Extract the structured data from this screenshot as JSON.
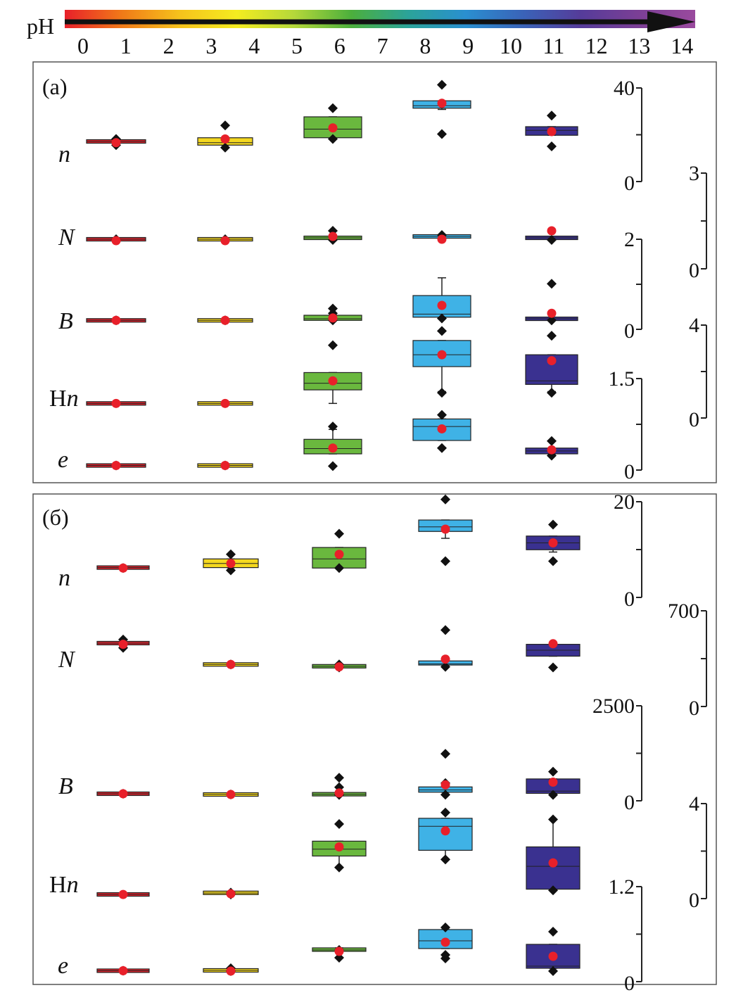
{
  "ph_scale": {
    "label": "pH",
    "ticks": [
      "0",
      "1",
      "2",
      "3",
      "4",
      "5",
      "6",
      "7",
      "8",
      "9",
      "10",
      "11",
      "12",
      "13",
      "14"
    ],
    "gradient_colors": [
      "#e8202a",
      "#f07a18",
      "#f6c21c",
      "#f4ec20",
      "#b5d83a",
      "#4caf3c",
      "#2ba39a",
      "#2a8fd0",
      "#3a63b8",
      "#553c9a",
      "#7b3f95",
      "#9a4a9e"
    ]
  },
  "colors": {
    "ph1": "#e0242e",
    "ph3": "#f4d820",
    "ph6": "#6ab83e",
    "ph8": "#3fb2e6",
    "ph11": "#3a3190",
    "mean": "#e8202a",
    "outlier": "#111111"
  },
  "chart_data": [
    {
      "type": "box",
      "panel_label": "(a)",
      "groups": [
        "pH 1",
        "pH 3",
        "pH 6",
        "pH 8",
        "pH 11"
      ],
      "rows": [
        {
          "name": "n",
          "label_parts": [
            {
              "t": "n",
              "i": true
            }
          ],
          "axis_index": 0,
          "boxes": [
            {
              "q1": 13.5,
              "median": 14,
              "q3": 14.5,
              "wlo": 13.5,
              "whi": 14.5,
              "mean": 13.5,
              "outliers": [
                12.5,
                15
              ]
            },
            {
              "q1": 12.5,
              "median": 13.5,
              "q3": 15.5,
              "wlo": 12.5,
              "whi": 15.5,
              "mean": 15,
              "outliers": [
                11.5,
                20.5
              ]
            },
            {
              "q1": 15.5,
              "median": 19,
              "q3": 24,
              "wlo": 15.5,
              "whi": 24,
              "mean": 19.5,
              "outliers": [
                15,
                27.5
              ]
            },
            {
              "q1": 27.5,
              "median": 28.5,
              "q3": 30.5,
              "wlo": 27,
              "whi": 30.5,
              "mean": 29.5,
              "outliers": [
                17,
                37
              ]
            },
            {
              "q1": 16.5,
              "median": 18.5,
              "q3": 20,
              "wlo": 16.5,
              "whi": 20,
              "mean": 18,
              "outliers": [
                12,
                24.5
              ]
            }
          ]
        },
        {
          "name": "N",
          "label_parts": [
            {
              "t": "N",
              "i": true
            }
          ],
          "axis_index": 1,
          "boxes": [
            {
              "q1": 0.9,
              "median": 1,
              "q3": 1.1,
              "wlo": 0.9,
              "whi": 1.1,
              "mean": 0.9,
              "outliers": [
                1
              ]
            },
            {
              "q1": 0.9,
              "median": 1,
              "q3": 1.1,
              "wlo": 0.9,
              "whi": 1.1,
              "mean": 0.9,
              "outliers": [
                1
              ]
            },
            {
              "q1": 1,
              "median": 1.1,
              "q3": 1.2,
              "wlo": 1,
              "whi": 1.2,
              "mean": 1.2,
              "outliers": [
                0.95,
                1.6
              ]
            },
            {
              "q1": 1.1,
              "median": 1.2,
              "q3": 1.3,
              "wlo": 1.1,
              "whi": 1.3,
              "mean": 1,
              "outliers": [
                1.3
              ]
            },
            {
              "q1": 1,
              "median": 1.1,
              "q3": 1.2,
              "wlo": 1,
              "whi": 1.2,
              "mean": 1.6,
              "outliers": [
                0.95
              ]
            }
          ]
        },
        {
          "name": "B",
          "label_parts": [
            {
              "t": "B",
              "i": true
            }
          ],
          "axis_index": 2,
          "boxes": [
            {
              "q1": 0.1,
              "median": 0.12,
              "q3": 0.14,
              "wlo": 0.1,
              "whi": 0.14,
              "mean": 0.12,
              "outliers": [
                0.12
              ]
            },
            {
              "q1": 0.1,
              "median": 0.12,
              "q3": 0.14,
              "wlo": 0.1,
              "whi": 0.14,
              "mean": 0.12,
              "outliers": [
                0.12
              ]
            },
            {
              "q1": 0.12,
              "median": 0.16,
              "q3": 0.25,
              "wlo": 0.12,
              "whi": 0.25,
              "mean": 0.18,
              "outliers": [
                0.12,
                0.3,
                0.42
              ]
            },
            {
              "q1": 0.2,
              "median": 0.28,
              "q3": 0.75,
              "wlo": 0.2,
              "whi": 1.2,
              "mean": 0.5,
              "outliers": [
                0.17
              ]
            },
            {
              "q1": 0.12,
              "median": 0.16,
              "q3": 0.2,
              "wlo": 0.12,
              "whi": 0.2,
              "mean": 0.3,
              "outliers": [
                0.12,
                1.05
              ]
            }
          ]
        },
        {
          "name": "Hn",
          "label_parts": [
            {
              "t": "H",
              "i": false
            },
            {
              "t": "n",
              "i": true
            }
          ],
          "axis_index": 3,
          "boxes": [
            {
              "q1": 0.04,
              "median": 0.05,
              "q3": 0.06,
              "wlo": 0.04,
              "whi": 0.06,
              "mean": 0.05,
              "outliers": []
            },
            {
              "q1": 0.04,
              "median": 0.05,
              "q3": 0.06,
              "wlo": 0.04,
              "whi": 0.06,
              "mean": 0.05,
              "outliers": []
            },
            {
              "q1": 0.62,
              "median": 0.9,
              "q3": 1.35,
              "wlo": 0.05,
              "whi": 1.35,
              "mean": 1,
              "outliers": [
                2.5
              ]
            },
            {
              "q1": 1.6,
              "median": 2.1,
              "q3": 2.7,
              "wlo": 0.55,
              "whi": 2.7,
              "mean": 2.1,
              "outliers": [
                0.5,
                3.1
              ]
            },
            {
              "q1": 0.85,
              "median": 1,
              "q3": 2.1,
              "wlo": 0.55,
              "whi": 2.1,
              "mean": 1.85,
              "outliers": [
                0.5,
                2.9
              ]
            }
          ]
        },
        {
          "name": "e",
          "label_parts": [
            {
              "t": "e",
              "i": true
            }
          ],
          "axis_index": 4,
          "boxes": [
            {
              "q1": 0.02,
              "median": 0.03,
              "q3": 0.04,
              "wlo": 0.02,
              "whi": 0.04,
              "mean": 0.03,
              "outliers": [
                0.03
              ]
            },
            {
              "q1": 0.02,
              "median": 0.03,
              "q3": 0.04,
              "wlo": 0.02,
              "whi": 0.04,
              "mean": 0.03,
              "outliers": [
                0.03
              ]
            },
            {
              "q1": 0.23,
              "median": 0.32,
              "q3": 0.48,
              "wlo": 0.23,
              "whi": 0.65,
              "mean": 0.33,
              "outliers": [
                0.02,
                0.7
              ]
            },
            {
              "q1": 0.46,
              "median": 0.7,
              "q3": 0.83,
              "wlo": 0.46,
              "whi": 0.83,
              "mean": 0.66,
              "outliers": [
                0.33,
                0.9
              ]
            },
            {
              "q1": 0.23,
              "median": 0.28,
              "q3": 0.33,
              "wlo": 0.23,
              "whi": 0.33,
              "mean": 0.3,
              "outliers": [
                0.2,
                0.45
              ]
            }
          ]
        }
      ],
      "axes": [
        {
          "side": "left",
          "max_label": "40",
          "min_label": "0",
          "vmin": 0,
          "vmax": 40
        },
        {
          "side": "right",
          "max_label": "3",
          "min_label": "0",
          "vmin": 0,
          "vmax": 3
        },
        {
          "side": "left",
          "max_label": "2",
          "min_label": "0",
          "vmin": 0,
          "vmax": 2
        },
        {
          "side": "right",
          "max_label": "4",
          "min_label": "0",
          "vmin": 0,
          "vmax": 4
        },
        {
          "side": "left",
          "max_label": "1.5",
          "min_label": "0",
          "vmin": 0,
          "vmax": 1.5
        }
      ]
    },
    {
      "type": "box",
      "panel_label": "(б)",
      "groups": [
        "pH 1",
        "pH 3",
        "pH 6",
        "pH 8",
        "pH 11"
      ],
      "rows": [
        {
          "name": "n",
          "label_parts": [
            {
              "t": "n",
              "i": true
            }
          ],
          "axis_index": 0,
          "boxes": [
            {
              "q1": 3.5,
              "median": 3.6,
              "q3": 3.7,
              "wlo": 3.5,
              "whi": 3.7,
              "mean": 3.5,
              "outliers": [
                3.5
              ]
            },
            {
              "q1": 3.6,
              "median": 4.5,
              "q3": 5.5,
              "wlo": 3.6,
              "whi": 5.5,
              "mean": 4.5,
              "outliers": [
                3,
                6.5
              ]
            },
            {
              "q1": 3.5,
              "median": 5.5,
              "q3": 8,
              "wlo": 3.5,
              "whi": 8,
              "mean": 6.5,
              "outliers": [
                3.5,
                11
              ]
            },
            {
              "q1": 11.5,
              "median": 12.5,
              "q3": 14,
              "wlo": 10,
              "whi": 14,
              "mean": 12,
              "outliers": [
                5,
                18.5
              ]
            },
            {
              "q1": 7.5,
              "median": 9,
              "q3": 10.5,
              "wlo": 7,
              "whi": 10.5,
              "mean": 9,
              "outliers": [
                5,
                13
              ]
            }
          ]
        },
        {
          "name": "N",
          "label_parts": [
            {
              "t": "N",
              "i": true
            }
          ],
          "axis_index": 1,
          "boxes": [
            {
              "q1": 370,
              "median": 380,
              "q3": 390,
              "wlo": 370,
              "whi": 390,
              "mean": 370,
              "outliers": [
                340,
                410
              ]
            },
            {
              "q1": 195,
              "median": 200,
              "q3": 205,
              "wlo": 195,
              "whi": 205,
              "mean": 200,
              "outliers": [
                200
              ]
            },
            {
              "q1": 180,
              "median": 185,
              "q3": 190,
              "wlo": 180,
              "whi": 190,
              "mean": 180,
              "outliers": [
                175,
                200
              ]
            },
            {
              "q1": 195,
              "median": 205,
              "q3": 230,
              "wlo": 195,
              "whi": 230,
              "mean": 245,
              "outliers": [
                180,
                490
              ]
            },
            {
              "q1": 270,
              "median": 320,
              "q3": 370,
              "wlo": 270,
              "whi": 370,
              "mean": 375,
              "outliers": [
                175
              ]
            }
          ]
        },
        {
          "name": "B",
          "label_parts": [
            {
              "t": "B",
              "i": true
            }
          ],
          "axis_index": 2,
          "boxes": [
            {
              "q1": 120,
              "median": 130,
              "q3": 140,
              "wlo": 120,
              "whi": 140,
              "mean": 130,
              "outliers": [
                130
              ]
            },
            {
              "q1": 100,
              "median": 110,
              "q3": 120,
              "wlo": 100,
              "whi": 120,
              "mean": 110,
              "outliers": [
                110
              ]
            },
            {
              "q1": 110,
              "median": 115,
              "q3": 125,
              "wlo": 110,
              "whi": 125,
              "mean": 150,
              "outliers": [
                100,
                300,
                550
              ]
            },
            {
              "q1": 170,
              "median": 230,
              "q3": 310,
              "wlo": 170,
              "whi": 310,
              "mean": 365,
              "outliers": [
                105,
                410,
                1180
              ]
            },
            {
              "q1": 140,
              "median": 200,
              "q3": 520,
              "wlo": 140,
              "whi": 520,
              "mean": 435,
              "outliers": [
                100,
                710
              ]
            }
          ]
        },
        {
          "name": "Hn",
          "label_parts": [
            {
              "t": "H",
              "i": false
            },
            {
              "t": "n",
              "i": true
            }
          ],
          "axis_index": 3,
          "boxes": [
            {
              "q1": 0.1,
              "median": 0.12,
              "q3": 0.14,
              "wlo": 0.1,
              "whi": 0.14,
              "mean": 0.12,
              "outliers": []
            },
            {
              "q1": 0.16,
              "median": 0.18,
              "q3": 0.22,
              "wlo": 0.16,
              "whi": 0.22,
              "mean": 0.15,
              "outliers": [
                0.12,
                0.2
              ]
            },
            {
              "q1": 1.8,
              "median": 2.1,
              "q3": 2.45,
              "wlo": 1.3,
              "whi": 2.45,
              "mean": 2.2,
              "outliers": [
                1.3,
                3.2
              ]
            },
            {
              "q1": 2.05,
              "median": 3.1,
              "q3": 3.45,
              "wlo": 1.65,
              "whi": 3.45,
              "mean": 2.9,
              "outliers": [
                1.65,
                3.7
              ]
            },
            {
              "q1": 0.35,
              "median": 1.35,
              "q3": 2.2,
              "wlo": 0.35,
              "whi": 3.4,
              "mean": 1.5,
              "outliers": [
                0.3,
                3.4
              ]
            }
          ]
        },
        {
          "name": "e",
          "label_parts": [
            {
              "t": "e",
              "i": true
            }
          ],
          "axis_index": 4,
          "boxes": [
            {
              "q1": 0.02,
              "median": 0.025,
              "q3": 0.03,
              "wlo": 0.02,
              "whi": 0.03,
              "mean": 0.025,
              "outliers": [
                0.025
              ]
            },
            {
              "q1": 0.01,
              "median": 0.03,
              "q3": 0.05,
              "wlo": 0.01,
              "whi": 0.05,
              "mean": 0.02,
              "outliers": [
                0.02,
                0.06
              ]
            },
            {
              "q1": 0.3,
              "median": 0.32,
              "q3": 0.35,
              "wlo": 0.3,
              "whi": 0.35,
              "mean": 0.3,
              "outliers": [
                0.21,
                0.32
              ]
            },
            {
              "q1": 0.34,
              "median": 0.45,
              "q3": 0.61,
              "wlo": 0.34,
              "whi": 0.61,
              "mean": 0.43,
              "outliers": [
                0.2,
                0.25,
                0.64
              ]
            },
            {
              "q1": 0.06,
              "median": 0.09,
              "q3": 0.4,
              "wlo": 0.06,
              "whi": 0.4,
              "mean": 0.23,
              "outliers": [
                0.02,
                0.58
              ]
            }
          ]
        }
      ],
      "axes": [
        {
          "side": "left",
          "max_label": "20",
          "min_label": "0",
          "vmin": 0,
          "vmax": 20
        },
        {
          "side": "right",
          "max_label": "700",
          "min_label": "0",
          "vmin": 0,
          "vmax": 700
        },
        {
          "side": "left",
          "max_label": "2500",
          "min_label": "0",
          "vmin": 0,
          "vmax": 2500
        },
        {
          "side": "right",
          "max_label": "4",
          "min_label": "0",
          "vmin": 0,
          "vmax": 4
        },
        {
          "side": "left",
          "max_label": "1.2",
          "min_label": "0",
          "vmin": 0,
          "vmax": 1.2
        }
      ]
    }
  ]
}
